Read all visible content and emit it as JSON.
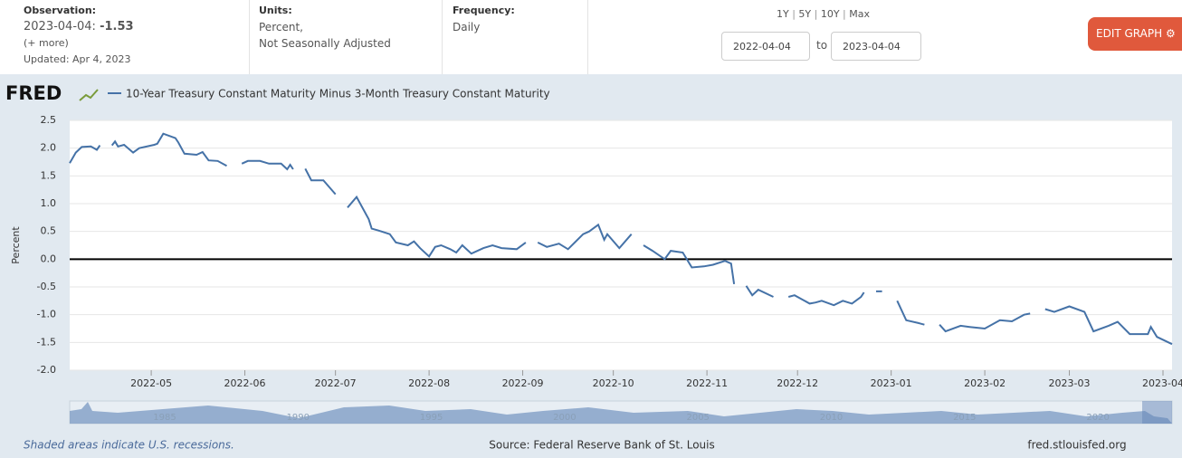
{
  "header": {
    "observation_label": "Observation:",
    "observation_date": "2023-04-04:",
    "observation_value": "-1.53",
    "more": "(+ more)",
    "updated": "Updated: Apr 4, 2023",
    "units_label": "Units:",
    "units_1": "Percent,",
    "units_2": "Not Seasonally Adjusted",
    "frequency_label": "Frequency:",
    "frequency": "Daily",
    "ranges": [
      "1Y",
      "5Y",
      "10Y",
      "Max"
    ],
    "start_date": "2022-04-04",
    "to": "to",
    "end_date": "2023-04-04",
    "edit_button": "EDIT GRAPH"
  },
  "logo": "FRED",
  "chart_data": {
    "type": "line",
    "y_label": "Percent",
    "zero_line": true,
    "grid": true,
    "xlim": [
      "2022-04-04",
      "2023-04-04"
    ],
    "xticks": [
      {
        "value": "2022-05-01",
        "label": "2022-05"
      },
      {
        "value": "2022-06-01",
        "label": "2022-06"
      },
      {
        "value": "2022-07-01",
        "label": "2022-07"
      },
      {
        "value": "2022-08-01",
        "label": "2022-08"
      },
      {
        "value": "2022-09-01",
        "label": "2022-09"
      },
      {
        "value": "2022-10-01",
        "label": "2022-10"
      },
      {
        "value": "2022-11-01",
        "label": "2022-11"
      },
      {
        "value": "2022-12-01",
        "label": "2022-12"
      },
      {
        "value": "2023-01-01",
        "label": "2023-01"
      },
      {
        "value": "2023-02-01",
        "label": "2023-02"
      },
      {
        "value": "2023-03-01",
        "label": "2023-03"
      },
      {
        "value": "2023-04-01",
        "label": "2023-04"
      }
    ],
    "ylim": [
      -2,
      2.5
    ],
    "yticks": [
      2.5,
      {
        "value": 2,
        "label": "2.0"
      },
      1.5,
      {
        "value": 1,
        "label": "1.0"
      },
      0.5,
      {
        "value": 0,
        "label": "0.0"
      },
      -0.5,
      {
        "value": -1,
        "label": "-1.0"
      },
      -1.5,
      {
        "value": -2,
        "label": "-2.0"
      }
    ],
    "x": [
      "2022-04-04",
      "2022-04-06",
      "2022-04-08",
      "2022-04-11",
      "2022-04-13",
      "2022-04-14",
      "2022-04-15",
      "2022-04-18",
      "2022-04-19",
      "2022-04-20",
      "2022-04-22",
      "2022-04-25",
      "2022-04-27",
      "2022-05-02",
      "2022-05-03",
      "2022-05-05",
      "2022-05-09",
      "2022-05-10",
      "2022-05-12",
      "2022-05-16",
      "2022-05-18",
      "2022-05-20",
      "2022-05-23",
      "2022-05-26",
      "2022-05-30",
      "2022-05-31",
      "2022-06-02",
      "2022-06-06",
      "2022-06-09",
      "2022-06-13",
      "2022-06-15",
      "2022-06-16",
      "2022-06-17",
      "2022-06-20",
      "2022-06-21",
      "2022-06-23",
      "2022-06-27",
      "2022-07-01",
      "2022-07-04",
      "2022-07-05",
      "2022-07-08",
      "2022-07-12",
      "2022-07-13",
      "2022-07-15",
      "2022-07-19",
      "2022-07-21",
      "2022-07-25",
      "2022-07-27",
      "2022-07-29",
      "2022-08-01",
      "2022-08-03",
      "2022-08-05",
      "2022-08-08",
      "2022-08-10",
      "2022-08-12",
      "2022-08-15",
      "2022-08-19",
      "2022-08-22",
      "2022-08-25",
      "2022-08-30",
      "2022-09-02",
      "2022-09-05",
      "2022-09-06",
      "2022-09-09",
      "2022-09-13",
      "2022-09-16",
      "2022-09-21",
      "2022-09-23",
      "2022-09-26",
      "2022-09-28",
      "2022-09-29",
      "2022-10-03",
      "2022-10-07",
      "2022-10-10",
      "2022-10-11",
      "2022-10-14",
      "2022-10-18",
      "2022-10-20",
      "2022-10-24",
      "2022-10-27",
      "2022-10-31",
      "2022-11-03",
      "2022-11-07",
      "2022-11-09",
      "2022-11-10",
      "2022-11-11",
      "2022-11-14",
      "2022-11-16",
      "2022-11-18",
      "2022-11-23",
      "2022-11-24",
      "2022-11-28",
      "2022-11-30",
      "2022-12-05",
      "2022-12-07",
      "2022-12-09",
      "2022-12-13",
      "2022-12-16",
      "2022-12-19",
      "2022-12-22",
      "2022-12-23",
      "2022-12-26",
      "2022-12-27",
      "2022-12-29",
      "2023-01-02",
      "2023-01-03",
      "2023-01-06",
      "2023-01-10",
      "2023-01-12",
      "2023-01-16",
      "2023-01-17",
      "2023-01-19",
      "2023-01-24",
      "2023-01-27",
      "2023-02-01",
      "2023-02-06",
      "2023-02-10",
      "2023-02-14",
      "2023-02-16",
      "2023-02-20",
      "2023-02-21",
      "2023-02-24",
      "2023-03-01",
      "2023-03-06",
      "2023-03-09",
      "2023-03-14",
      "2023-03-17",
      "2023-03-21",
      "2023-03-27",
      "2023-03-28",
      "2023-03-30",
      "2023-04-04"
    ],
    "series": [
      {
        "name": "10-Year Treasury Constant Maturity Minus 3-Month Treasury Constant Maturity",
        "color": "#4572a7",
        "values": [
          1.73,
          1.92,
          2.02,
          2.03,
          1.97,
          2.05,
          null,
          2.05,
          2.12,
          2.03,
          2.06,
          1.92,
          2.0,
          2.06,
          2.08,
          2.26,
          2.18,
          2.1,
          1.9,
          1.88,
          1.93,
          1.78,
          1.77,
          1.68,
          null,
          1.72,
          1.77,
          1.77,
          1.72,
          1.72,
          1.62,
          1.7,
          1.62,
          null,
          1.63,
          1.42,
          1.42,
          1.17,
          null,
          0.93,
          1.12,
          0.72,
          0.55,
          0.52,
          0.45,
          0.3,
          0.25,
          0.32,
          0.2,
          0.05,
          0.22,
          0.25,
          0.18,
          0.12,
          0.25,
          0.1,
          0.2,
          0.25,
          0.2,
          0.18,
          0.3,
          null,
          0.3,
          0.22,
          0.28,
          0.18,
          0.45,
          0.5,
          0.62,
          0.35,
          0.45,
          0.2,
          0.45,
          null,
          0.25,
          0.15,
          0.0,
          0.15,
          0.12,
          -0.15,
          -0.13,
          -0.1,
          -0.03,
          -0.08,
          -0.45,
          null,
          -0.48,
          -0.65,
          -0.55,
          -0.68,
          null,
          -0.68,
          -0.65,
          -0.8,
          -0.78,
          -0.75,
          -0.83,
          -0.75,
          -0.8,
          -0.68,
          -0.6,
          null,
          -0.58,
          -0.58,
          null,
          -0.75,
          -1.1,
          -1.15,
          -1.18,
          null,
          -1.18,
          -1.3,
          -1.2,
          -1.22,
          -1.25,
          -1.1,
          -1.12,
          -1.0,
          -0.98,
          null,
          -0.9,
          -0.95,
          -0.85,
          -0.95,
          -1.3,
          -1.2,
          -1.13,
          -1.35,
          -1.35,
          -1.22,
          -1.4,
          -1.53
        ]
      }
    ]
  },
  "navigator": {
    "labels": [
      "1985",
      "1990",
      "1995",
      "2000",
      "2005",
      "2010",
      "2015",
      "2020"
    ]
  },
  "footer": {
    "recessions": "Shaded areas indicate U.S. recessions.",
    "source": "Source: Federal Reserve Bank of St. Louis",
    "site": "fred.stlouisfed.org"
  }
}
